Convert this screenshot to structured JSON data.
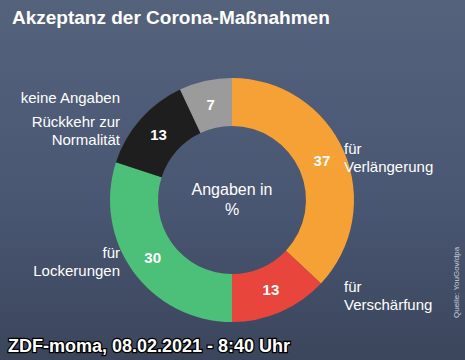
{
  "chart_data": {
    "type": "donut",
    "title": "Akzeptanz der Corona-Maßnahmen",
    "categories": [
      "für Verlängerung",
      "für Verschärfung",
      "für Lockerungen",
      "Rückkehr zur Normalität",
      "keine Angaben"
    ],
    "values": [
      37,
      13,
      30,
      13,
      7
    ],
    "colors": [
      "#f6a135",
      "#e8453d",
      "#4cbf78",
      "#1e1e1e",
      "#9b9b9b"
    ],
    "data_labels": true,
    "annotations": [
      "Angaben in %",
      "Quelle: YouGov/dpa",
      "ZDF-moma, 08.02.2021 - 8:40 Uhr"
    ]
  }
}
